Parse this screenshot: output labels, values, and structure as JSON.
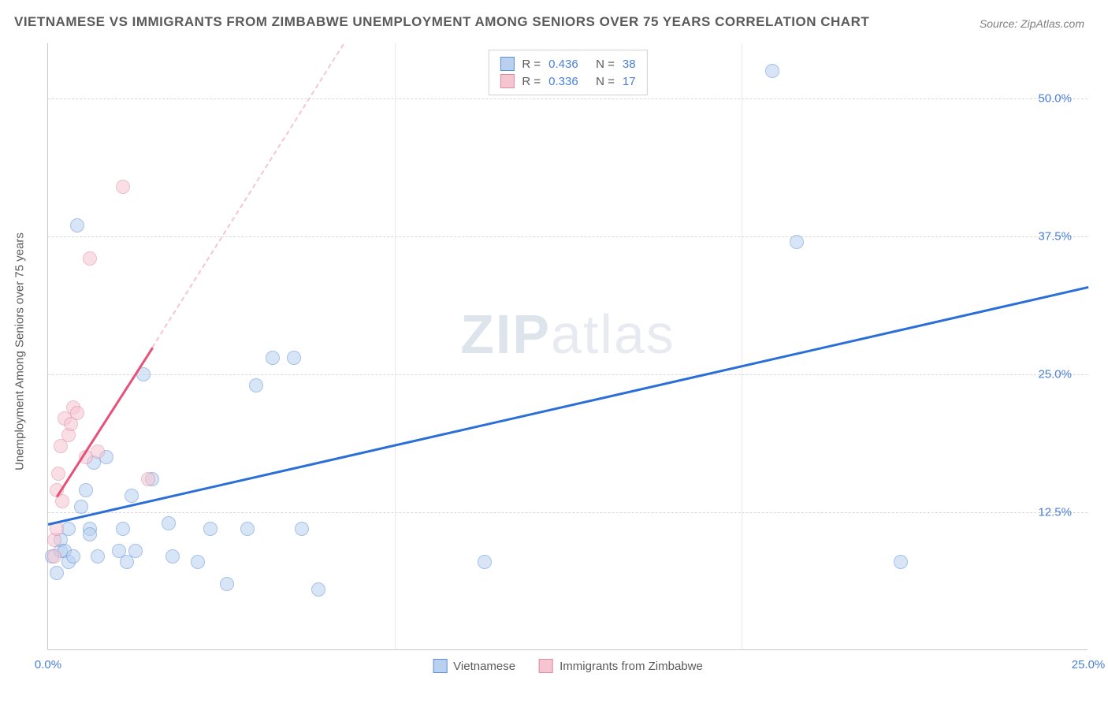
{
  "title": "VIETNAMESE VS IMMIGRANTS FROM ZIMBABWE UNEMPLOYMENT AMONG SENIORS OVER 75 YEARS CORRELATION CHART",
  "source": "Source: ZipAtlas.com",
  "watermark_bold": "ZIP",
  "watermark_rest": "atlas",
  "y_axis_title": "Unemployment Among Seniors over 75 years",
  "chart": {
    "type": "scatter",
    "background_color": "#ffffff",
    "grid_color": "#d8d8d8",
    "xlim": [
      0,
      25
    ],
    "ylim": [
      0,
      55
    ],
    "xticks": [
      {
        "pos": 0,
        "label": "0.0%"
      },
      {
        "pos": 25,
        "label": "25.0%"
      }
    ],
    "xtick_minor": [
      8.33,
      16.67
    ],
    "yticks": [
      {
        "pos": 12.5,
        "label": "12.5%"
      },
      {
        "pos": 25,
        "label": "25.0%"
      },
      {
        "pos": 37.5,
        "label": "37.5%"
      },
      {
        "pos": 50,
        "label": "50.0%"
      }
    ],
    "tick_color": "#4a7fd6",
    "tick_fontsize": 15,
    "axis_fontsize": 15,
    "marker_radius": 9,
    "marker_opacity": 0.55,
    "series": [
      {
        "name": "Vietnamese",
        "fill": "#b9d1ef",
        "stroke": "#5a8fd6",
        "trend_color": "#2a6fd6",
        "trend_dash_color": "#b9d1ef",
        "R": "0.436",
        "N": "38",
        "trend": {
          "x1": 0,
          "y1": 11.5,
          "x2": 25,
          "y2": 33
        },
        "trend_dash_ext": {
          "x1": 0,
          "y1": 11.5,
          "x2": 7.1,
          "y2": 55
        },
        "trend_dash_ext_visible": false,
        "points": [
          [
            0.1,
            8.5
          ],
          [
            0.2,
            7.0
          ],
          [
            0.3,
            9.0
          ],
          [
            0.3,
            10.0
          ],
          [
            0.4,
            9.0
          ],
          [
            0.5,
            8.0
          ],
          [
            0.5,
            11.0
          ],
          [
            0.6,
            8.5
          ],
          [
            0.8,
            13.0
          ],
          [
            0.9,
            14.5
          ],
          [
            1.0,
            11.0
          ],
          [
            1.1,
            17.0
          ],
          [
            1.2,
            8.5
          ],
          [
            1.4,
            17.5
          ],
          [
            1.7,
            9.0
          ],
          [
            1.8,
            11.0
          ],
          [
            1.9,
            8.0
          ],
          [
            2.0,
            14.0
          ],
          [
            2.1,
            9.0
          ],
          [
            2.3,
            25.0
          ],
          [
            2.5,
            15.5
          ],
          [
            2.9,
            11.5
          ],
          [
            3.0,
            8.5
          ],
          [
            3.6,
            8.0
          ],
          [
            3.9,
            11.0
          ],
          [
            4.3,
            6.0
          ],
          [
            4.8,
            11.0
          ],
          [
            5.0,
            24.0
          ],
          [
            5.4,
            26.5
          ],
          [
            5.9,
            26.5
          ],
          [
            6.1,
            11.0
          ],
          [
            6.5,
            5.5
          ],
          [
            10.5,
            8.0
          ],
          [
            17.4,
            52.5
          ],
          [
            18.0,
            37.0
          ],
          [
            20.5,
            8.0
          ],
          [
            0.7,
            38.5
          ],
          [
            1.0,
            10.5
          ]
        ]
      },
      {
        "name": "Immigrants from Zimbabwe",
        "fill": "#f5c6d1",
        "stroke": "#e08aa0",
        "trend_color": "#e6517a",
        "trend_dash_color": "#f5c6d1",
        "R": "0.336",
        "N": "17",
        "trend": {
          "x1": 0.2,
          "y1": 14.0,
          "x2": 2.5,
          "y2": 27.5
        },
        "trend_dash_ext": {
          "x1": 2.5,
          "y1": 27.5,
          "x2": 7.1,
          "y2": 55
        },
        "trend_dash_ext_visible": true,
        "points": [
          [
            0.15,
            10.0
          ],
          [
            0.2,
            11
          ],
          [
            0.2,
            14.5
          ],
          [
            0.25,
            16.0
          ],
          [
            0.3,
            18.5
          ],
          [
            0.35,
            13.5
          ],
          [
            0.4,
            21.0
          ],
          [
            0.5,
            19.5
          ],
          [
            0.55,
            20.5
          ],
          [
            0.6,
            22.0
          ],
          [
            0.7,
            21.5
          ],
          [
            0.9,
            17.5
          ],
          [
            1.2,
            18.0
          ],
          [
            1.8,
            42.0
          ],
          [
            2.4,
            15.5
          ],
          [
            0.15,
            8.5
          ],
          [
            1.0,
            35.5
          ]
        ]
      }
    ]
  },
  "legend_top": {
    "R_label": "R =",
    "N_label": "N =",
    "value_color": "#4a7fd6",
    "label_color": "#5a5a5a"
  },
  "legend_bottom": {
    "items": [
      "Vietnamese",
      "Immigrants from Zimbabwe"
    ]
  }
}
